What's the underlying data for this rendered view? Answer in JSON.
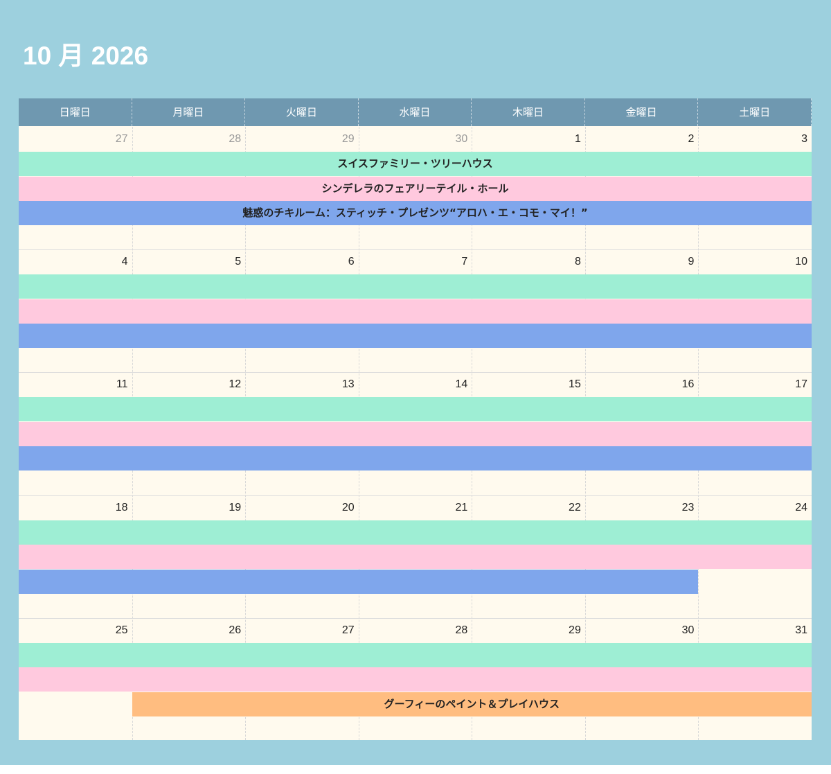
{
  "title": "10 月 2026",
  "weekdays": [
    "日曜日",
    "月曜日",
    "火曜日",
    "水曜日",
    "木曜日",
    "金曜日",
    "土曜日"
  ],
  "weeks": [
    [
      {
        "d": "27",
        "other": true
      },
      {
        "d": "28",
        "other": true
      },
      {
        "d": "29",
        "other": true
      },
      {
        "d": "30",
        "other": true
      },
      {
        "d": "1"
      },
      {
        "d": "2"
      },
      {
        "d": "3"
      }
    ],
    [
      {
        "d": "4"
      },
      {
        "d": "5"
      },
      {
        "d": "6"
      },
      {
        "d": "7"
      },
      {
        "d": "8"
      },
      {
        "d": "9"
      },
      {
        "d": "10"
      }
    ],
    [
      {
        "d": "11"
      },
      {
        "d": "12"
      },
      {
        "d": "13"
      },
      {
        "d": "14"
      },
      {
        "d": "15"
      },
      {
        "d": "16"
      },
      {
        "d": "17"
      }
    ],
    [
      {
        "d": "18"
      },
      {
        "d": "19"
      },
      {
        "d": "20"
      },
      {
        "d": "21"
      },
      {
        "d": "22"
      },
      {
        "d": "23"
      },
      {
        "d": "24"
      }
    ],
    [
      {
        "d": "25"
      },
      {
        "d": "26"
      },
      {
        "d": "27"
      },
      {
        "d": "28"
      },
      {
        "d": "29"
      },
      {
        "d": "30"
      },
      {
        "d": "31"
      }
    ]
  ],
  "events": [
    {
      "title": "スイスファミリー・ツリーハウス",
      "color": "#9eeed4",
      "start": "2026-09-27",
      "end": "2026-10-31"
    },
    {
      "title": "シンデレラのフェアリーテイル・ホール",
      "color": "#ffc9de",
      "start": "2026-09-27",
      "end": "2026-10-31"
    },
    {
      "title": "魅惑のチキルーム：スティッチ・プレゼンツ“アロハ・エ・コモ・マイ！”",
      "color": "#7fa6ec",
      "start": "2026-09-27",
      "end": "2026-10-23"
    },
    {
      "title": "グーフィーのペイント＆プレイハウス",
      "color": "#ffbd80",
      "start": "2026-10-26",
      "end": "2026-10-31"
    }
  ]
}
